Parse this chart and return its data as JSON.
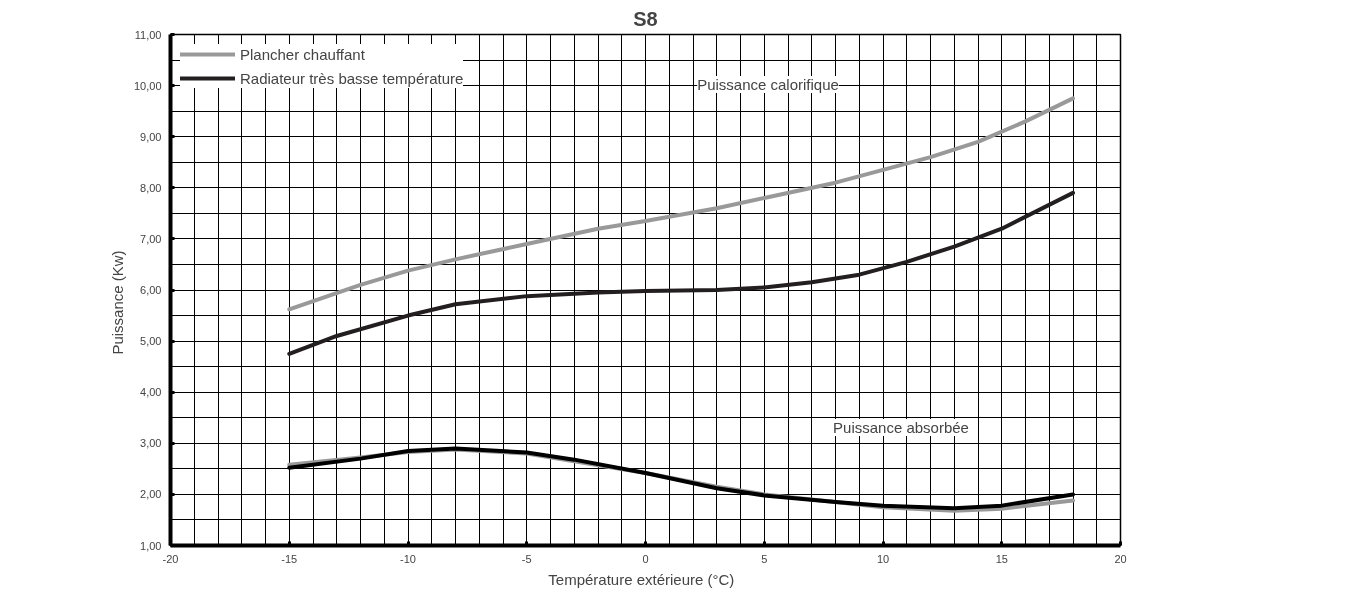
{
  "chart_data": {
    "type": "line",
    "title": "S8",
    "xlabel": "Température extérieure   (°C)",
    "ylabel": "Puissance       (Kw)",
    "xlim": [
      -20,
      20
    ],
    "xticks": [
      -20,
      -15,
      -10,
      -5,
      0,
      5,
      10,
      15,
      20
    ],
    "ylim": [
      1,
      11
    ],
    "yticks": [
      {
        "value": 1,
        "label": "1,00"
      },
      {
        "value": 2,
        "label": "2,00"
      },
      {
        "value": 3,
        "label": "3,00"
      },
      {
        "value": 4,
        "label": "4,00"
      },
      {
        "value": 5,
        "label": "5,00"
      },
      {
        "value": 6,
        "label": "6,00"
      },
      {
        "value": 7,
        "label": "7,00"
      },
      {
        "value": 8,
        "label": "8,00"
      },
      {
        "value": 9,
        "label": "9,00"
      },
      {
        "value": 10,
        "label": "10,00"
      },
      {
        "value": 11,
        "label": "11,00"
      }
    ],
    "grid": true,
    "legend": "top left",
    "marker": "none",
    "line_style": "solid",
    "series": [
      {
        "name": "Plancher chauffant",
        "color": "#999999",
        "x": [
          -15,
          -12,
          -10,
          -8,
          -5,
          -2,
          0,
          3,
          5,
          8,
          10,
          12,
          14,
          16,
          18
        ],
        "values": [
          5.62,
          6.1,
          6.38,
          6.6,
          6.9,
          7.2,
          7.35,
          7.6,
          7.8,
          8.1,
          8.35,
          8.6,
          8.9,
          9.3,
          9.75
        ]
      },
      {
        "name": "Radiateur très basse température",
        "color": "#231f20",
        "x": [
          -15,
          -13,
          -10,
          -8,
          -5,
          -2,
          0,
          3,
          5,
          7,
          9,
          11,
          13,
          15,
          18
        ],
        "values": [
          4.75,
          5.1,
          5.5,
          5.72,
          5.88,
          5.95,
          5.98,
          6.0,
          6.05,
          6.15,
          6.3,
          6.55,
          6.85,
          7.2,
          7.9
        ]
      },
      {
        "color": "#999999",
        "x": [
          -15,
          -12,
          -10,
          -8,
          -5,
          -3,
          0,
          3,
          5,
          8,
          10,
          13,
          15,
          18
        ],
        "values": [
          2.58,
          2.72,
          2.83,
          2.88,
          2.8,
          2.65,
          2.42,
          2.15,
          2.0,
          1.85,
          1.75,
          1.68,
          1.72,
          1.88
        ]
      },
      {
        "color": "#000000",
        "x": [
          -15,
          -12,
          -10,
          -8,
          -5,
          -3,
          0,
          3,
          5,
          8,
          10,
          13,
          15,
          18
        ],
        "values": [
          2.52,
          2.7,
          2.85,
          2.9,
          2.82,
          2.68,
          2.42,
          2.12,
          1.98,
          1.85,
          1.78,
          1.73,
          1.78,
          2.0
        ]
      }
    ],
    "annotations": [
      "Puissance calorifique",
      "Puissance absorbée"
    ]
  }
}
